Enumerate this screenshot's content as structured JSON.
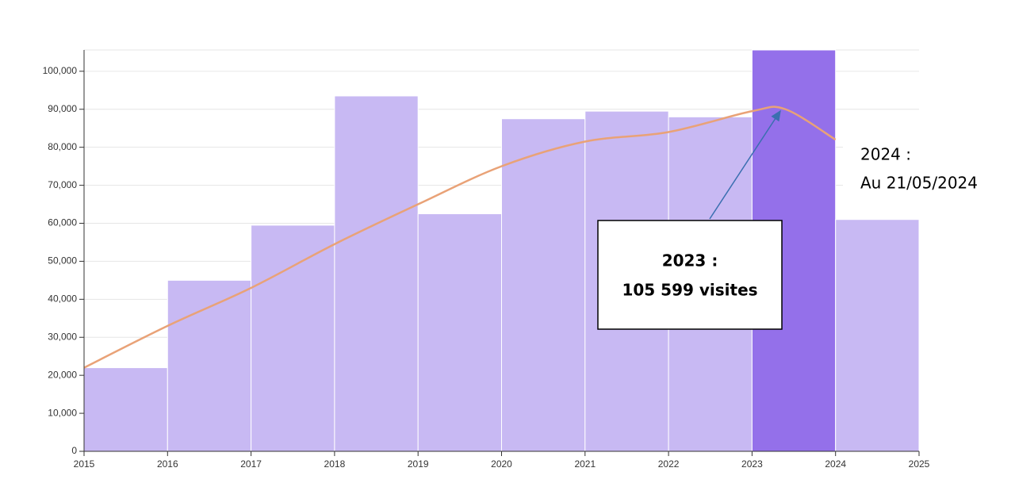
{
  "chart_data": {
    "type": "histogram",
    "bins": [
      2015,
      2016,
      2017,
      2018,
      2019,
      2020,
      2021,
      2022,
      2023,
      2024,
      2025
    ],
    "values": [
      22000,
      45000,
      59500,
      93500,
      62500,
      87500,
      89500,
      88000,
      105599,
      61000
    ],
    "colors": [
      "#c8b9f3",
      "#c8b9f3",
      "#c8b9f3",
      "#c8b9f3",
      "#c8b9f3",
      "#c8b9f3",
      "#c8b9f3",
      "#c8b9f3",
      "#9470ea",
      "#c8b9f3"
    ],
    "trend": {
      "color": "#e9a277",
      "x": [
        2015,
        2016,
        2017,
        2018,
        2019,
        2020,
        2021,
        2022,
        2023,
        2023.4,
        2024
      ],
      "values": [
        22000,
        33000,
        43000,
        54500,
        65000,
        75000,
        81500,
        84000,
        89500,
        90000,
        82000
      ]
    },
    "xlim": [
      2015,
      2025
    ],
    "ylim": [
      0,
      105600
    ],
    "xticks": [
      2015,
      2016,
      2017,
      2018,
      2019,
      2020,
      2021,
      2022,
      2023,
      2024,
      2025
    ],
    "yticks": [
      0,
      {
        "value": 10000,
        "label": "10,000"
      },
      {
        "value": 20000,
        "label": "20,000"
      },
      {
        "value": 30000,
        "label": "30,000"
      },
      {
        "value": 40000,
        "label": "40,000"
      },
      {
        "value": 50000,
        "label": "50,000"
      },
      {
        "value": 60000,
        "label": "60,000"
      },
      {
        "value": 70000,
        "label": "70,000"
      },
      {
        "value": 80000,
        "label": "80,000"
      },
      {
        "value": 90000,
        "label": "90,000"
      },
      {
        "value": 100000,
        "label": "100,000"
      }
    ],
    "grid": true,
    "annotations": [
      {
        "lines": [
          "2023 :",
          "105 599 visites"
        ]
      },
      {
        "lines": [
          "2024 :",
          "Au 21/05/2024"
        ]
      }
    ]
  }
}
